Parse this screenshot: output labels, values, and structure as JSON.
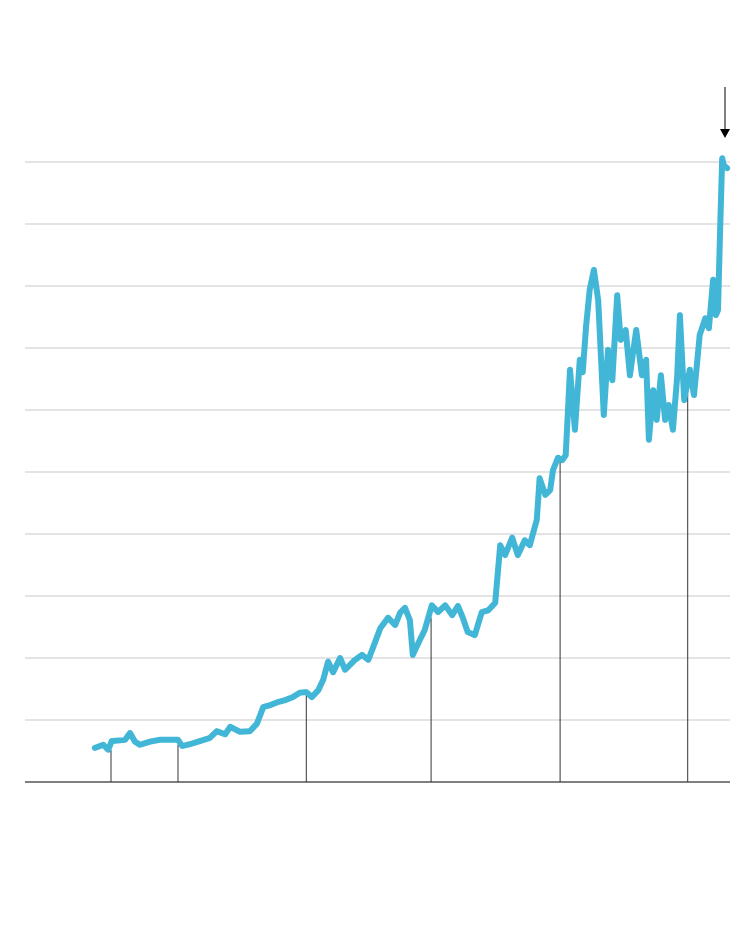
{
  "chart_data": {
    "type": "line",
    "x": [
      9.9,
      11.1,
      11.8,
      12.3,
      14.2,
      14.9,
      15.6,
      16.3,
      17.7,
      19.1,
      20.6,
      21.7,
      22.3,
      23.4,
      24.8,
      26.2,
      27.2,
      28.4,
      29.1,
      30.5,
      31.9,
      32.9,
      33.8,
      34.8,
      35.9,
      36.9,
      38.0,
      39.0,
      39.9,
      40.7,
      41.6,
      42.3,
      43.0,
      43.7,
      44.7,
      45.4,
      46.8,
      47.8,
      48.7,
      49.5,
      50.4,
      51.5,
      52.5,
      53.2,
      53.9,
      54.6,
      55.0,
      56.0,
      56.7,
      57.7,
      58.6,
      59.6,
      60.6,
      61.4,
      62.1,
      62.8,
      63.8,
      64.8,
      65.7,
      66.7,
      67.4,
      68.1,
      69.1,
      69.9,
      70.9,
      71.6,
      72.6,
      73.0,
      73.8,
      74.5,
      74.9,
      75.6,
      76.2,
      76.7,
      77.3,
      78.0,
      78.7,
      79.1,
      79.6,
      80.1,
      80.7,
      81.3,
      82.1,
      82.7,
      83.3,
      84.0,
      84.5,
      85.2,
      85.8,
      86.7,
      87.5,
      88.1,
      88.5,
      89.1,
      89.6,
      90.2,
      90.8,
      91.3,
      91.9,
      92.5,
      92.9,
      93.5,
      94.3,
      94.9,
      95.7,
      96.5,
      97.0,
      97.6,
      98.0,
      98.3,
      98.6,
      98.9,
      99.1,
      99.6
    ],
    "series": [
      {
        "color": "#41b6d6",
        "values": [
          0.55,
          0.6,
          0.52,
          0.66,
          0.68,
          0.79,
          0.65,
          0.6,
          0.65,
          0.68,
          0.68,
          0.68,
          0.58,
          0.61,
          0.66,
          0.71,
          0.82,
          0.77,
          0.89,
          0.81,
          0.82,
          0.94,
          1.21,
          1.24,
          1.29,
          1.32,
          1.37,
          1.44,
          1.45,
          1.37,
          1.48,
          1.65,
          1.94,
          1.77,
          2.0,
          1.81,
          1.97,
          2.05,
          1.97,
          2.21,
          2.48,
          2.65,
          2.53,
          2.73,
          2.81,
          2.61,
          2.05,
          2.29,
          2.45,
          2.85,
          2.74,
          2.85,
          2.69,
          2.84,
          2.65,
          2.42,
          2.37,
          2.74,
          2.77,
          2.89,
          3.82,
          3.66,
          3.94,
          3.66,
          3.9,
          3.82,
          4.23,
          4.9,
          4.63,
          4.71,
          5.03,
          5.23,
          5.19,
          5.27,
          6.65,
          5.68,
          6.81,
          6.61,
          7.37,
          7.94,
          8.26,
          7.77,
          5.92,
          6.97,
          6.48,
          7.85,
          7.13,
          7.29,
          6.56,
          7.29,
          6.56,
          6.81,
          5.52,
          6.32,
          5.84,
          6.56,
          5.84,
          6.08,
          5.68,
          6.52,
          7.53,
          6.16,
          6.65,
          6.24,
          7.21,
          7.48,
          7.32,
          8.1,
          7.53,
          7.61,
          8.9,
          10.06,
          9.95,
          9.9
        ]
      }
    ],
    "annotation_x": [
      12.2,
      21.7,
      39.9,
      57.6,
      75.9,
      94.0
    ],
    "xlim": [
      0,
      100
    ],
    "ylim": [
      0,
      10
    ],
    "yticks": [
      0,
      1,
      2,
      3,
      4,
      5,
      6,
      7,
      8,
      9,
      10
    ],
    "grid": true
  }
}
